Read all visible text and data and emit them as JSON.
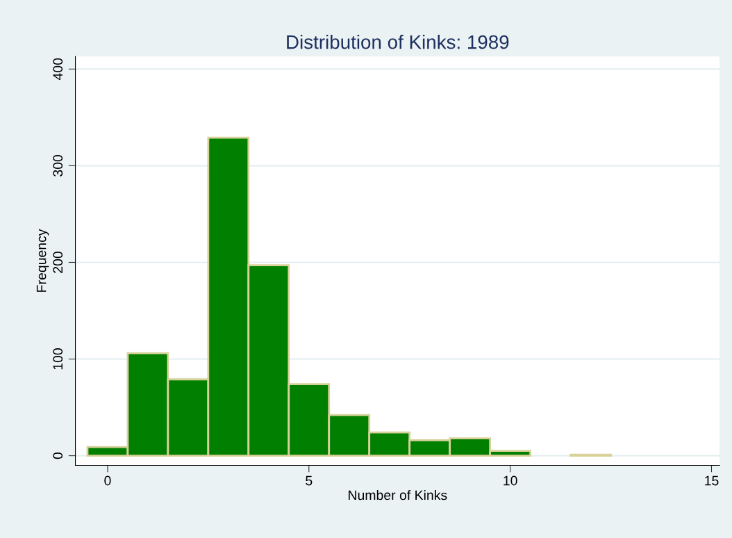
{
  "chart_data": {
    "type": "histogram",
    "title": "Distribution of Kinks: 1989",
    "xlabel": "Number of Kinks",
    "ylabel": "Frequency",
    "bins": [
      -0.5,
      0.5,
      1.5,
      2.5,
      3.5,
      4.5,
      5.5,
      6.5,
      7.5,
      8.5,
      9.5,
      10.5,
      11.5,
      12.5
    ],
    "values": [
      9,
      106,
      79,
      329,
      197,
      74,
      42,
      24,
      16,
      18,
      5,
      0,
      1
    ],
    "color": "#007f00",
    "xlim": [
      -0.8,
      15.2
    ],
    "ylim": [
      -10,
      413
    ],
    "xticks": [
      0,
      5,
      10,
      15
    ],
    "yticks": [
      0,
      100,
      200,
      300,
      400
    ],
    "grid": "y",
    "legend": false
  }
}
